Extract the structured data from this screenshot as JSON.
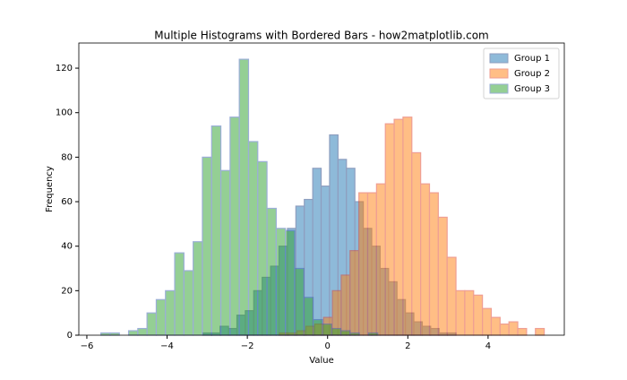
{
  "chart_data": {
    "type": "histogram",
    "title": "Multiple Histograms with Bordered Bars - how2matplotlib.com",
    "xlabel": "Value",
    "ylabel": "Frequency",
    "xlim": [
      -6.2,
      5.9
    ],
    "ylim": [
      0,
      131.3
    ],
    "xticks": [
      {
        "value": -6,
        "label": "−6"
      },
      {
        "value": -4,
        "label": "−4"
      },
      {
        "value": -2,
        "label": "−2"
      },
      0,
      2,
      4
    ],
    "yticks": [
      0,
      20,
      40,
      60,
      80,
      100,
      120
    ],
    "grid": false,
    "legend": "upper right",
    "alpha": 0.5,
    "series": [
      {
        "name": "Group 1",
        "color": "#1f77b4",
        "edgecolor": "#1f3f80",
        "bins": [
          -3.1,
          -2.89,
          -2.68,
          -2.47,
          -2.26,
          -2.05,
          -1.84,
          -1.63,
          -1.42,
          -1.21,
          -1.0,
          -0.79,
          -0.58,
          -0.37,
          -0.16,
          0.05,
          0.26,
          0.47,
          0.68,
          0.89,
          1.1,
          1.31,
          1.52,
          1.73,
          1.94,
          2.15,
          2.36,
          2.57,
          2.78,
          2.99,
          3.2
        ],
        "values": [
          1,
          1,
          4,
          3,
          9,
          11,
          20,
          26,
          31,
          40,
          48,
          58,
          61,
          75,
          67,
          90,
          79,
          75,
          60,
          48,
          40,
          30,
          24,
          16,
          10,
          6,
          4,
          3,
          1,
          1
        ]
      },
      {
        "name": "Group 2",
        "color": "#ff7f0e",
        "edgecolor": "#e0402a",
        "bins": [
          -1.2,
          -0.98,
          -0.76,
          -0.54,
          -0.32,
          -0.1,
          0.12,
          0.34,
          0.56,
          0.78,
          1.0,
          1.22,
          1.44,
          1.66,
          1.88,
          2.1,
          2.32,
          2.54,
          2.76,
          2.98,
          3.2,
          3.42,
          3.64,
          3.86,
          4.08,
          4.3,
          4.52,
          4.74,
          4.96,
          5.18,
          5.4
        ],
        "values": [
          1,
          1,
          2,
          4,
          5,
          8,
          20,
          27,
          38,
          64,
          64,
          68,
          95,
          97,
          98,
          82,
          68,
          64,
          53,
          35,
          20,
          20,
          18,
          12,
          8,
          5,
          6,
          3,
          0,
          3
        ]
      },
      {
        "name": "Group 3",
        "color": "#2ca02c",
        "edgecolor": "#3a5fb0",
        "bins": [
          -5.65,
          -5.42,
          -5.19,
          -4.96,
          -4.73,
          -4.5,
          -4.27,
          -4.04,
          -3.81,
          -3.58,
          -3.35,
          -3.12,
          -2.89,
          -2.66,
          -2.43,
          -2.2,
          -1.97,
          -1.74,
          -1.51,
          -1.28,
          -1.05,
          -0.82,
          -0.59,
          -0.36,
          -0.13,
          0.1,
          0.33,
          0.56,
          0.79,
          1.02,
          1.25
        ],
        "values": [
          1,
          1,
          0,
          2,
          3,
          10,
          16,
          20,
          37,
          29,
          42,
          80,
          94,
          74,
          98,
          124,
          87,
          78,
          57,
          48,
          47,
          30,
          17,
          7,
          5,
          3,
          2,
          1,
          0,
          1
        ]
      }
    ]
  }
}
